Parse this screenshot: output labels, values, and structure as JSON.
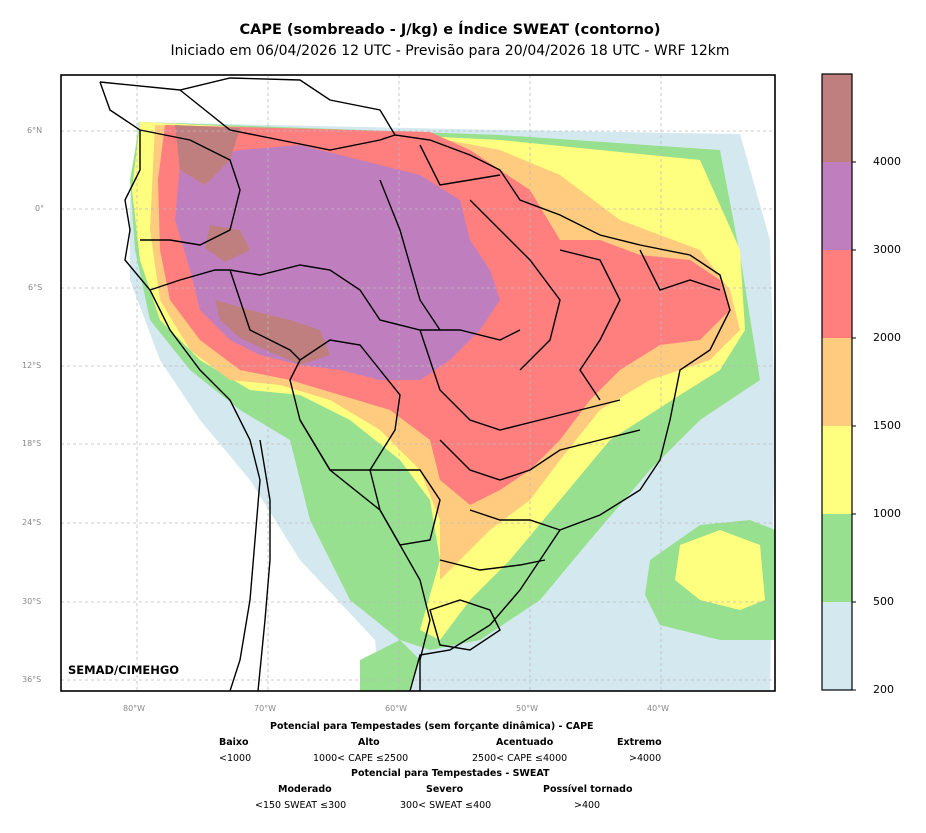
{
  "title": "CAPE (sombreado - J/kg) e Índice SWEAT (contorno)",
  "subtitle": "Iniciado em 06/04/2026 12 UTC - Previsão para 20/04/2026 18 UTC - WRF 12km",
  "credit": "SEMAD/CIMEHGO",
  "lat_labels": [
    "6°N",
    "0°",
    "6°S",
    "12°S",
    "18°S",
    "24°S",
    "30°S",
    "36°S"
  ],
  "lon_labels": [
    "80°W",
    "70°W",
    "60°W",
    "50°W",
    "40°W"
  ],
  "colorbar": {
    "ticks": [
      "200",
      "500",
      "1000",
      "1500",
      "2000",
      "3000",
      "4000"
    ],
    "colors": [
      "#d4e9ef",
      "#96e08f",
      "#ffff7f",
      "#ffcb7f",
      "#ff7f7f",
      "#bf7fbf",
      "#bf7f7f"
    ]
  },
  "legend": {
    "cape_header": "Potencial para Tempestades (sem forçante dinâmica) - CAPE",
    "cape_levels": [
      {
        "name": "Baixo",
        "range": "<1000"
      },
      {
        "name": "Alto",
        "range": "1000< CAPE ≤2500"
      },
      {
        "name": "Acentuado",
        "range": "2500< CAPE ≤4000"
      },
      {
        "name": "Extremo",
        "range": ">4000"
      }
    ],
    "sweat_header": "Potencial para Tempestades - SWEAT",
    "sweat_levels": [
      {
        "name": "Moderado",
        "range": "<150 SWEAT ≤300"
      },
      {
        "name": "Severo",
        "range": "300< SWEAT ≤400"
      },
      {
        "name": "Possível tornado",
        "range": ">400"
      }
    ]
  }
}
